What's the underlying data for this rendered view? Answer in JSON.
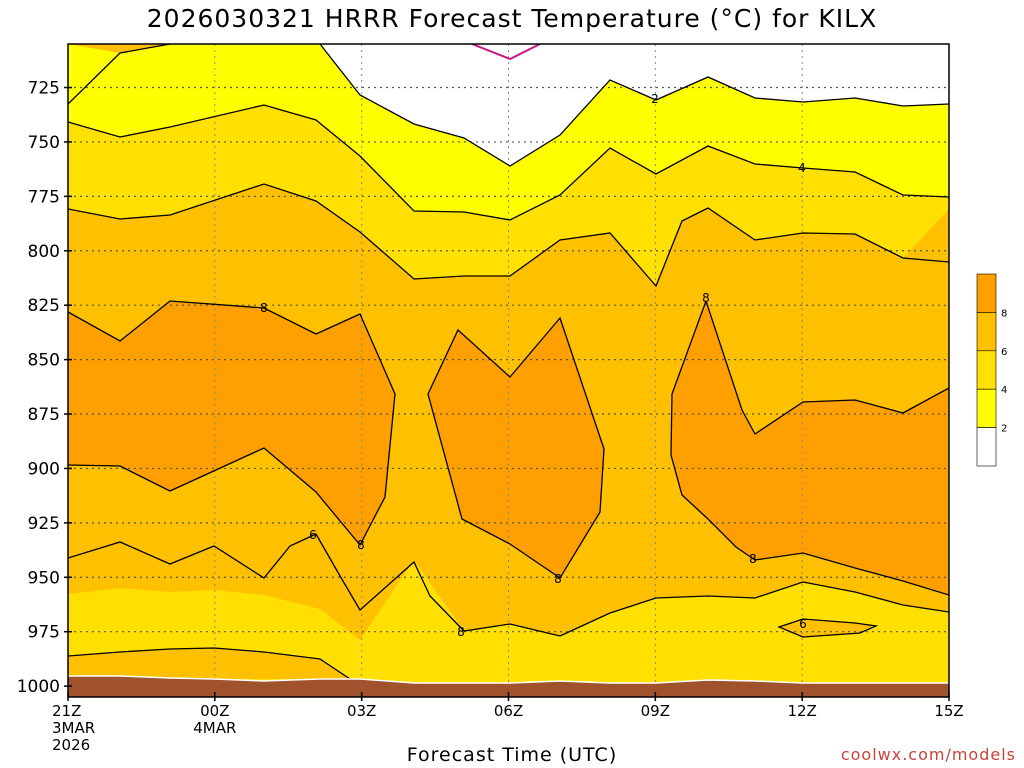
{
  "title": "2026030321 HRRR Forecast Temperature (°C) for KILX",
  "credit": "coolwx.com/models",
  "chart_data": {
    "type": "contour",
    "title": "2026030321 HRRR Forecast Temperature (°C) for KILX",
    "xlabel": "Forecast Time (UTC)",
    "ylabel": "",
    "x_hours": [
      0,
      3,
      6,
      9,
      12,
      15,
      18
    ],
    "x_tick_labels": [
      [
        "21Z",
        "3MAR",
        "2026"
      ],
      [
        "00Z",
        "4MAR"
      ],
      [
        "03Z"
      ],
      [
        "06Z"
      ],
      [
        "09Z"
      ],
      [
        "12Z"
      ],
      [
        "15Z"
      ]
    ],
    "y_axis_range_hPa": [
      1005,
      705
    ],
    "y_ticks_hPa": [
      725,
      750,
      775,
      800,
      825,
      850,
      875,
      900,
      925,
      950,
      975,
      1000
    ],
    "grid": true,
    "color_levels_C": [
      2,
      4,
      6,
      8
    ],
    "colorbar_labels": [
      "8",
      "6",
      "4",
      "2"
    ],
    "band_colors": {
      "below_2": "#ffffff",
      "2_to_4": "#ffff00",
      "4_to_6": "#ffe000",
      "6_to_8": "#ffc000",
      "above_8": "#ffa000",
      "ground": "#a0522d",
      "zero_line": "#c71585"
    },
    "contours": [
      {
        "level": 2,
        "points": [
          [
            0,
            704
          ],
          [
            1,
            705
          ],
          [
            2,
            702
          ],
          [
            3,
            721
          ],
          [
            4,
            730
          ],
          [
            5,
            738
          ],
          [
            6,
            748
          ],
          [
            7,
            736
          ],
          [
            8,
            720
          ],
          [
            9,
            726
          ],
          [
            10,
            719
          ],
          [
            11,
            726
          ],
          [
            12,
            722
          ],
          [
            13,
            723
          ],
          [
            14,
            726
          ],
          [
            15,
            725
          ]
        ]
      },
      {
        "level": 4,
        "points": [
          [
            0,
            732
          ],
          [
            1,
            738
          ],
          [
            2,
            736
          ],
          [
            3,
            730
          ],
          [
            4,
            733
          ],
          [
            5,
            741
          ],
          [
            6,
            757
          ],
          [
            7,
            767
          ],
          [
            8,
            769
          ],
          [
            9,
            762
          ],
          [
            10,
            752
          ],
          [
            11,
            758
          ],
          [
            12,
            758
          ],
          [
            13,
            759
          ],
          [
            14,
            750
          ],
          [
            15,
            751
          ],
          [
            16,
            762
          ],
          [
            17,
            764
          ],
          [
            18,
            763
          ],
          [
            19,
            764
          ],
          [
            20,
            765
          ],
          [
            21,
            767
          ],
          [
            22,
            773
          ],
          [
            23,
            776
          ],
          [
            24,
            776
          ],
          [
            25,
            773
          ],
          [
            26,
            769
          ],
          [
            27,
            769
          ],
          [
            28,
            762
          ],
          [
            29,
            765
          ],
          [
            30,
            760
          ],
          [
            31,
            755
          ],
          [
            32,
            755
          ],
          [
            33,
            760
          ],
          [
            34,
            765
          ],
          [
            35,
            770
          ],
          [
            36,
            774
          ],
          [
            37,
            774
          ]
        ]
      },
      {
        "level": 6,
        "points": [
          [
            0,
            767
          ],
          [
            1,
            771
          ],
          [
            2,
            771
          ],
          [
            3,
            766
          ],
          [
            4,
            761
          ],
          [
            5,
            767
          ],
          [
            6,
            778
          ],
          [
            7,
            793
          ],
          [
            8,
            797
          ],
          [
            9,
            797
          ],
          [
            10,
            788
          ],
          [
            11,
            785
          ],
          [
            12,
            781
          ],
          [
            13,
            790
          ],
          [
            14,
            800
          ],
          [
            15,
            789
          ],
          [
            16,
            769
          ],
          [
            17,
            768
          ],
          [
            18,
            780
          ],
          [
            19,
            781
          ],
          [
            20,
            782
          ],
          [
            21,
            784
          ],
          [
            22,
            790
          ],
          [
            23,
            788
          ]
        ]
      },
      {
        "level": 6,
        "points": [
          [
            0,
            930
          ],
          [
            1,
            924
          ],
          [
            2,
            929
          ],
          [
            3,
            931
          ],
          [
            4,
            936
          ],
          [
            5,
            926
          ],
          [
            6,
            919
          ],
          [
            7,
            942
          ],
          [
            8,
            957
          ],
          [
            9,
            942
          ],
          [
            10,
            957
          ],
          [
            11,
            969
          ],
          [
            12,
            968
          ],
          [
            13,
            974
          ],
          [
            14,
            968
          ],
          [
            15,
            959
          ],
          [
            16,
            957
          ],
          [
            17,
            958
          ],
          [
            18,
            960
          ],
          [
            19,
            956
          ],
          [
            20,
            950
          ],
          [
            21,
            953
          ]
        ]
      },
      {
        "level": 6,
        "points": [
          [
            0,
            994
          ],
          [
            1,
            993
          ],
          [
            2,
            993
          ],
          [
            3,
            995
          ],
          [
            4,
            998
          ],
          [
            5,
            1005
          ]
        ]
      },
      {
        "level": 8,
        "points": [
          [
            0,
            812
          ],
          [
            1,
            826
          ],
          [
            2,
            809
          ],
          [
            3,
            811
          ],
          [
            4,
            812
          ],
          [
            5,
            818
          ],
          [
            6,
            826
          ],
          [
            7,
            816
          ],
          [
            8,
            813
          ],
          [
            9,
            860
          ],
          [
            10,
            884
          ],
          [
            11,
            922
          ],
          [
            12,
            894
          ],
          [
            13,
            880
          ],
          [
            14,
            883
          ],
          [
            15,
            887
          ],
          [
            16,
            896
          ],
          [
            17,
            884
          ],
          [
            18,
            886
          ]
        ]
      },
      {
        "level": 8,
        "points": [
          [
            0,
            858
          ],
          [
            1,
            825
          ],
          [
            2,
            833
          ],
          [
            3,
            845
          ],
          [
            4,
            830
          ],
          [
            5,
            862
          ],
          [
            6,
            912
          ],
          [
            7,
            935
          ],
          [
            8,
            914
          ],
          [
            9,
            893
          ],
          [
            10,
            873
          ],
          [
            11,
            907
          ],
          [
            12,
            929
          ],
          [
            13,
            936
          ],
          [
            14,
            942
          ]
        ]
      },
      {
        "level": 8,
        "points": [
          [
            0,
            865
          ],
          [
            1,
            846
          ],
          [
            2,
            811
          ],
          [
            3,
            862
          ],
          [
            4,
            868
          ],
          [
            5,
            872
          ],
          [
            6,
            871
          ],
          [
            7,
            860
          ],
          [
            8,
            856
          ],
          [
            9,
            865
          ]
        ]
      }
    ],
    "contour_labels": [
      "8",
      "8",
      "2",
      "4",
      "8",
      "6",
      "8",
      "8",
      "8",
      "6"
    ]
  }
}
